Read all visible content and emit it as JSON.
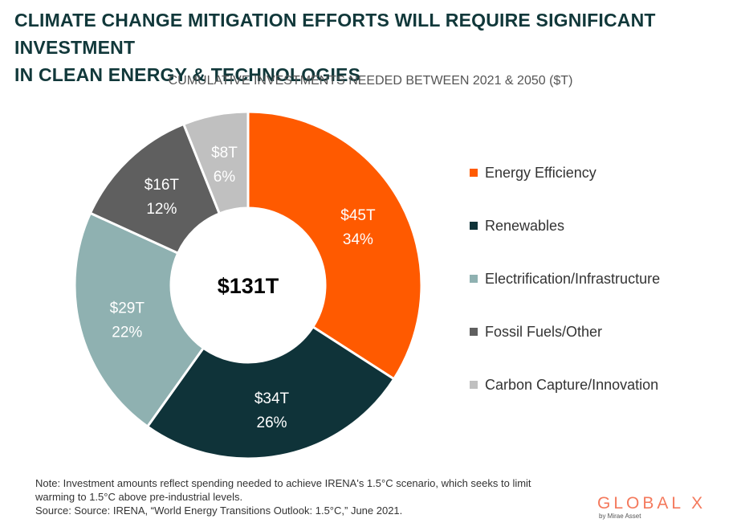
{
  "header": {
    "title_line1": "CLIMATE CHANGE MITIGATION EFFORTS WILL REQUIRE SIGNIFICANT INVESTMENT",
    "title_line2": "IN CLEAN ENERGY & TECHNOLOGIES",
    "subtitle": "CUMULATIVE INVESTMENTS NEEDED BETWEEN 2021 & 2050 ($T)"
  },
  "chart_data": {
    "type": "pie",
    "style": "donut",
    "center_label": "$131T",
    "categories": [
      "Energy Efficiency",
      "Renewables",
      "Electrification/Infrastructure",
      "Fossil Fuels/Other",
      "Carbon Capture/Innovation"
    ],
    "values": [
      45,
      34,
      29,
      16,
      8
    ],
    "value_labels": [
      "$45T",
      "$34T",
      "$29T",
      "$16T",
      "$8T"
    ],
    "percent_labels": [
      "34%",
      "26%",
      "22%",
      "12%",
      "6%"
    ],
    "colors": [
      "#ff5a00",
      "#0f3339",
      "#8fb1b1",
      "#5f5f5f",
      "#c0c0c0"
    ],
    "label_colors": [
      "#ffffff",
      "#ffffff",
      "#ffffff",
      "#ffffff",
      "#ffffff"
    ],
    "legend_position": "right"
  },
  "footer": {
    "note_line1": "Note: Investment amounts reflect spending needed to achieve IRENA's 1.5°C scenario, which seeks to limit",
    "note_line2": "warming to 1.5°C above pre-industrial levels.",
    "source": "Source: Source: IRENA, “World Energy Transitions Outlook: 1.5°C,” June 2021."
  },
  "logo": {
    "name": "GLOBAL X",
    "tagline": "by Mirae Asset",
    "color": "#f4795c"
  }
}
